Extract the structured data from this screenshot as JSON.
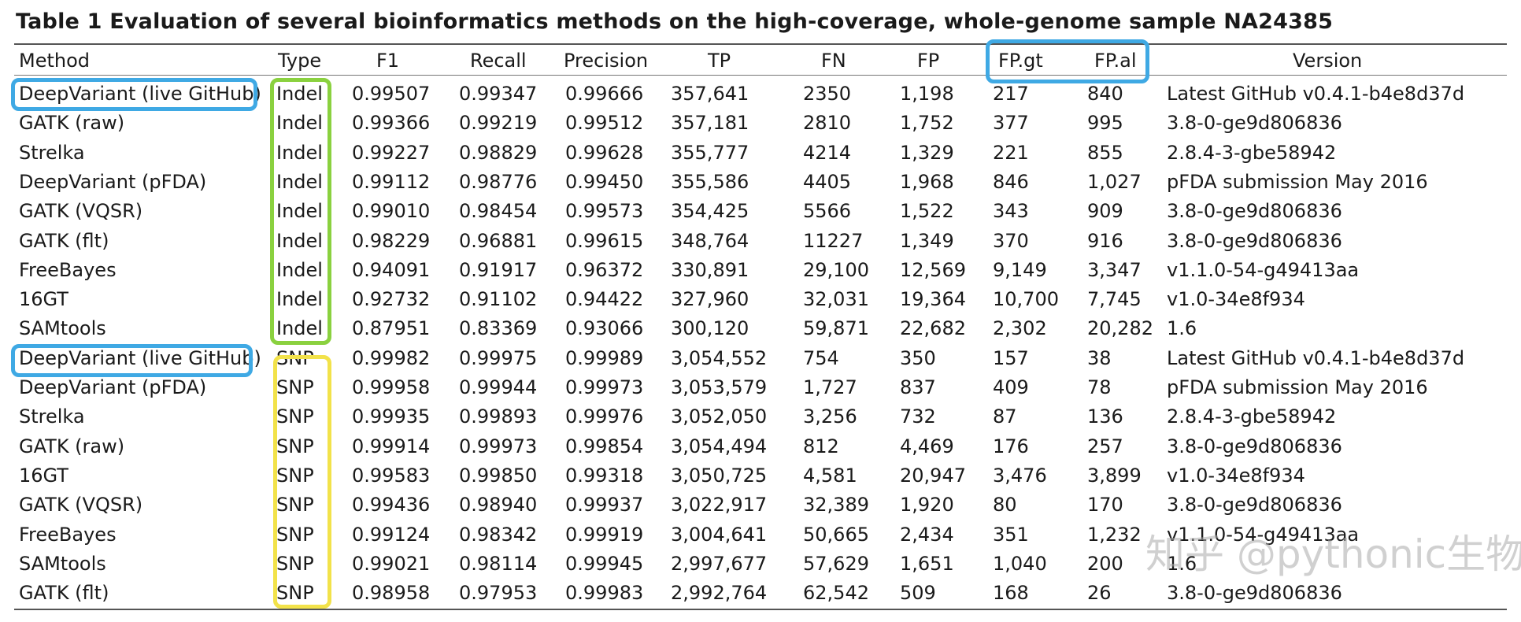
{
  "table": {
    "title": "Table 1  Evaluation of several bioinformatics methods on the high-coverage, whole-genome sample NA24385",
    "headers": {
      "method": "Method",
      "type": "Type",
      "f1": "F1",
      "recall": "Recall",
      "precision": "Precision",
      "tp": "TP",
      "fn": "FN",
      "fp": "FP",
      "fp_gt": "FP.gt",
      "fp_al": "FP.al",
      "version": "Version"
    },
    "rows": [
      [
        "DeepVariant (live GitHub)",
        "Indel",
        "0.99507",
        "0.99347",
        "0.99666",
        "357,641",
        "2350",
        "1,198",
        "217",
        "840",
        "Latest GitHub v0.4.1-b4e8d37d"
      ],
      [
        "GATK (raw)",
        "Indel",
        "0.99366",
        "0.99219",
        "0.99512",
        "357,181",
        "2810",
        "1,752",
        "377",
        "995",
        "3.8-0-ge9d806836"
      ],
      [
        "Strelka",
        "Indel",
        "0.99227",
        "0.98829",
        "0.99628",
        "355,777",
        "4214",
        "1,329",
        "221",
        "855",
        "2.8.4-3-gbe58942"
      ],
      [
        "DeepVariant (pFDA)",
        "Indel",
        "0.99112",
        "0.98776",
        "0.99450",
        "355,586",
        "4405",
        "1,968",
        "846",
        "1,027",
        "pFDA submission May 2016"
      ],
      [
        "GATK (VQSR)",
        "Indel",
        "0.99010",
        "0.98454",
        "0.99573",
        "354,425",
        "5566",
        "1,522",
        "343",
        "909",
        "3.8-0-ge9d806836"
      ],
      [
        "GATK (flt)",
        "Indel",
        "0.98229",
        "0.96881",
        "0.99615",
        "348,764",
        "11227",
        "1,349",
        "370",
        "916",
        "3.8-0-ge9d806836"
      ],
      [
        "FreeBayes",
        "Indel",
        "0.94091",
        "0.91917",
        "0.96372",
        "330,891",
        "29,100",
        "12,569",
        "9,149",
        "3,347",
        "v1.1.0-54-g49413aa"
      ],
      [
        "16GT",
        "Indel",
        "0.92732",
        "0.91102",
        "0.94422",
        "327,960",
        "32,031",
        "19,364",
        "10,700",
        "7,745",
        "v1.0-34e8f934"
      ],
      [
        "SAMtools",
        "Indel",
        "0.87951",
        "0.83369",
        "0.93066",
        "300,120",
        "59,871",
        "22,682",
        "2,302",
        "20,282",
        "1.6"
      ],
      [
        "DeepVariant (live GitHub)",
        "SNP",
        "0.99982",
        "0.99975",
        "0.99989",
        "3,054,552",
        "754",
        "350",
        "157",
        "38",
        "Latest GitHub v0.4.1-b4e8d37d"
      ],
      [
        "DeepVariant (pFDA)",
        "SNP",
        "0.99958",
        "0.99944",
        "0.99973",
        "3,053,579",
        "1,727",
        "837",
        "409",
        "78",
        "pFDA submission May 2016"
      ],
      [
        "Strelka",
        "SNP",
        "0.99935",
        "0.99893",
        "0.99976",
        "3,052,050",
        "3,256",
        "732",
        "87",
        "136",
        "2.8.4-3-gbe58942"
      ],
      [
        "GATK (raw)",
        "SNP",
        "0.99914",
        "0.99973",
        "0.99854",
        "3,054,494",
        "812",
        "4,469",
        "176",
        "257",
        "3.8-0-ge9d806836"
      ],
      [
        "16GT",
        "SNP",
        "0.99583",
        "0.99850",
        "0.99318",
        "3,050,725",
        "4,581",
        "20,947",
        "3,476",
        "3,899",
        "v1.0-34e8f934"
      ],
      [
        "GATK (VQSR)",
        "SNP",
        "0.99436",
        "0.98940",
        "0.99937",
        "3,022,917",
        "32,389",
        "1,920",
        "80",
        "170",
        "3.8-0-ge9d806836"
      ],
      [
        "FreeBayes",
        "SNP",
        "0.99124",
        "0.98342",
        "0.99919",
        "3,004,641",
        "50,665",
        "2,434",
        "351",
        "1,232",
        "v1.1.0-54-g49413aa"
      ],
      [
        "SAMtools",
        "SNP",
        "0.99021",
        "0.98114",
        "0.99945",
        "2,997,677",
        "57,629",
        "1,651",
        "1,040",
        "200",
        "1.6"
      ],
      [
        "GATK (flt)",
        "SNP",
        "0.98958",
        "0.97953",
        "0.99983",
        "2,992,764",
        "62,542",
        "509",
        "168",
        "26",
        "3.8-0-ge9d806836"
      ]
    ]
  },
  "watermark": "知乎 @pythonic生物人",
  "highlight_colors": {
    "method_and_fp_columns": "#3fa9e4",
    "indel_type": "#8ad13f",
    "snp_type": "#f2e24a"
  }
}
